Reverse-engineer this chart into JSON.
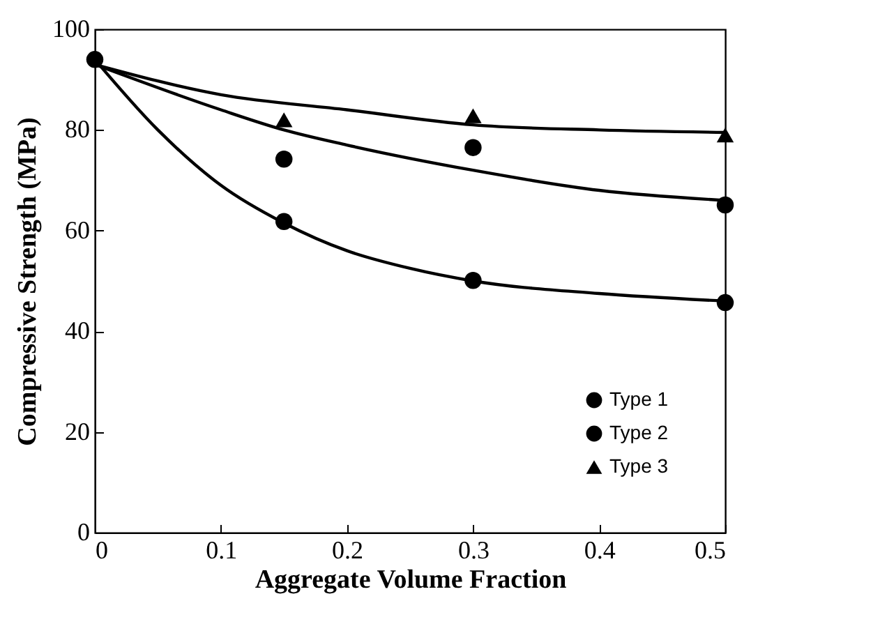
{
  "chart_data": {
    "type": "scatter",
    "xlabel": "Aggregate Volume Fraction",
    "ylabel": "Compressive Strength (MPa)",
    "xlim": [
      0,
      0.5
    ],
    "ylim": [
      0,
      100
    ],
    "xticks": [
      0,
      0.1,
      0.2,
      0.3,
      0.4,
      0.5
    ],
    "yticks": [
      0,
      20,
      40,
      60,
      80,
      100
    ],
    "grid": false,
    "legend": "bottom right",
    "series": [
      {
        "type": "line",
        "color": "#000000",
        "marker": "none",
        "x": [
          0,
          0.05,
          0.1,
          0.15,
          0.2,
          0.25,
          0.3,
          0.4,
          0.5
        ],
        "values": [
          94,
          80,
          69,
          61.5,
          56,
          52.5,
          50,
          47.5,
          46
        ]
      },
      {
        "type": "line",
        "color": "#000000",
        "marker": "none",
        "x": [
          0,
          0.1,
          0.15,
          0.2,
          0.3,
          0.4,
          0.5
        ],
        "values": [
          93,
          84,
          80,
          77,
          72,
          68,
          66
        ]
      },
      {
        "type": "line",
        "color": "#000000",
        "marker": "none",
        "x": [
          0,
          0.1,
          0.2,
          0.3,
          0.4,
          0.5
        ],
        "values": [
          93,
          87,
          84,
          81,
          80,
          79.5
        ]
      },
      {
        "type": "scatter",
        "name": "Type 1",
        "color": "#000000",
        "marker": "circle",
        "x": [
          0.15,
          0.3,
          0.5
        ],
        "values": [
          61.8,
          50.1,
          45.7
        ]
      },
      {
        "type": "scatter",
        "name": "Type 2",
        "color": "#000000",
        "marker": "circle",
        "x": [
          0,
          0.15,
          0.3,
          0.5
        ],
        "values": [
          94,
          74.2,
          76.5,
          65.1
        ]
      },
      {
        "type": "scatter",
        "name": "Type 3",
        "color": "#000000",
        "marker": "triangle",
        "x": [
          0.15,
          0.3,
          0.5
        ],
        "values": [
          82,
          82.8,
          79
        ]
      }
    ]
  }
}
